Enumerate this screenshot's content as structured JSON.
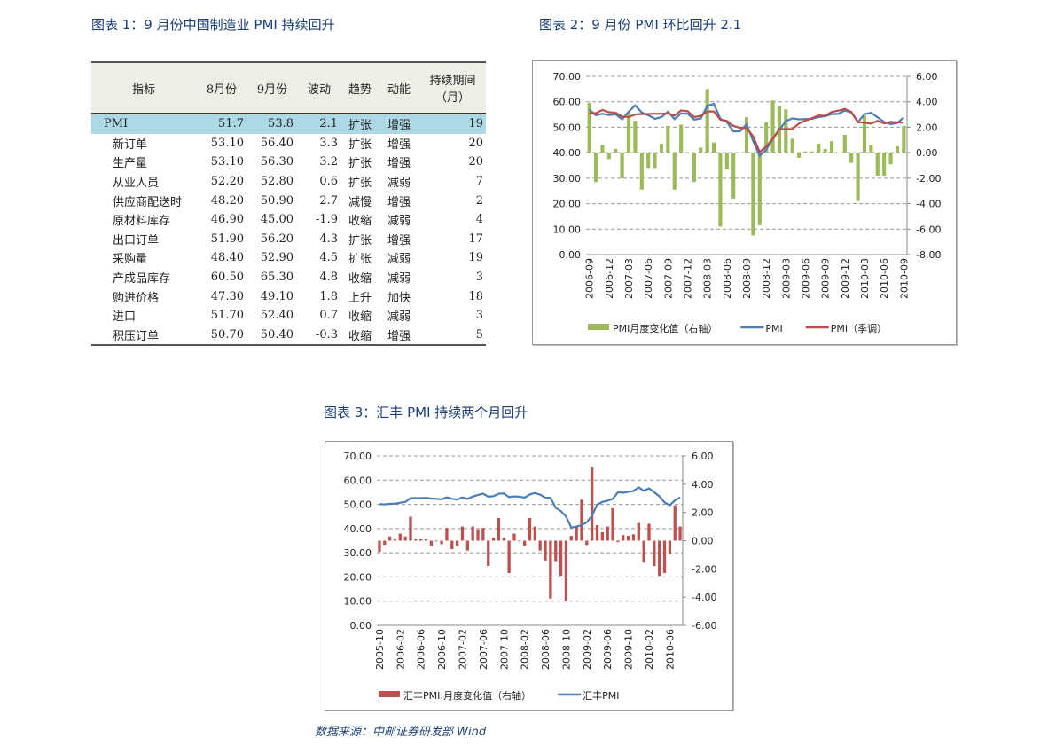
{
  "titles": {
    "t1": "图表 1：9 月份中国制造业 PMI 持续回升",
    "t2": "图表 2：9 月份 PMI 环比回升 2.1",
    "t3": "图表 3：汇丰 PMI 持续两个月回升"
  },
  "table": {
    "headers": [
      "指标",
      "8月份",
      "9月份",
      "波动",
      "趋势",
      "动能",
      "持续期间",
      "（月）"
    ],
    "rows": [
      [
        "PMI",
        "51.7",
        "53.8",
        "2.1",
        "扩张",
        "增强",
        "19"
      ],
      [
        "新订单",
        "53.10",
        "56.40",
        "3.3",
        "扩张",
        "增强",
        "20"
      ],
      [
        "生产量",
        "53.10",
        "56.30",
        "3.2",
        "扩张",
        "增强",
        "20"
      ],
      [
        "从业人员",
        "52.20",
        "52.80",
        "0.6",
        "扩张",
        "减弱",
        "7"
      ],
      [
        "供应商配送时",
        "48.20",
        "50.90",
        "2.7",
        "减慢",
        "增强",
        "2"
      ],
      [
        "原材料库存",
        "46.90",
        "45.00",
        "-1.9",
        "收缩",
        "减弱",
        "4"
      ],
      [
        "出口订单",
        "51.90",
        "56.20",
        "4.3",
        "扩张",
        "增强",
        "17"
      ],
      [
        "采购量",
        "48.40",
        "52.90",
        "4.5",
        "扩张",
        "减弱",
        "19"
      ],
      [
        "产成品库存",
        "60.50",
        "65.30",
        "4.8",
        "收缩",
        "减弱",
        "3"
      ],
      [
        "购进价格",
        "47.30",
        "49.10",
        "1.8",
        "上升",
        "加快",
        "18"
      ],
      [
        "进口",
        "51.70",
        "52.40",
        "0.7",
        "收缩",
        "减弱",
        "3"
      ],
      [
        "积压订单",
        "50.70",
        "50.40",
        "-0.3",
        "收缩",
        "增强",
        "5"
      ]
    ],
    "colors": {
      "header_bg": "#eeede6",
      "highlight_bg": "#add8e6"
    }
  },
  "chart_data": [
    {
      "type": "bar+line",
      "ylim_left": [
        0,
        70
      ],
      "ylim_right": [
        -8,
        6
      ],
      "left_ticks": [
        "0.00",
        "10.00",
        "20.00",
        "30.00",
        "40.00",
        "50.00",
        "60.00",
        "70.00"
      ],
      "right_ticks": [
        "-8.00",
        "-6.00",
        "-4.00",
        "-2.00",
        "0.00",
        "2.00",
        "4.00",
        "6.00"
      ],
      "x_start": "2006-09",
      "x_tick_labels": [
        "2006-09",
        "2006-12",
        "2007-03",
        "2007-06",
        "2007-09",
        "2007-12",
        "2008-03",
        "2008-06",
        "2008-09",
        "2008-12",
        "2009-03",
        "2009-06",
        "2009-09",
        "2009-12",
        "2010-03",
        "2010-06",
        "2010-09"
      ],
      "grid": true,
      "legend": "bottom",
      "series": [
        {
          "name": "PMI月度变化值（右轴）",
          "type": "bar",
          "axis": "right",
          "color": "#9bbb59",
          "values": [
            3.9,
            -2.3,
            0.6,
            -0.5,
            0.3,
            -2.0,
            3.2,
            2.5,
            -2.9,
            -1.2,
            -1.2,
            0.7,
            2.1,
            -2.9,
            2.2,
            0,
            -2.3,
            0.4,
            5.0,
            0.8,
            -5.8,
            -1.3,
            -3.6,
            0,
            2.8,
            -6.5,
            -5.7,
            2.4,
            4.1,
            3.7,
            3.4,
            1.1,
            -0.4,
            0.1,
            0.1,
            0.7,
            0.3,
            0.9,
            0,
            1.4,
            -0.8,
            -3.8,
            2.9,
            0.6,
            -1.8,
            -1.8,
            -0.9,
            0.5,
            2.1
          ]
        },
        {
          "name": "PMI",
          "type": "line",
          "axis": "left",
          "color": "#4a7ebb",
          "values": [
            56.9,
            54.7,
            55.3,
            54.8,
            55.1,
            53.1,
            56.1,
            58.6,
            55.8,
            54.7,
            53.3,
            54.0,
            56.1,
            53.2,
            55.4,
            55.3,
            53.0,
            53.4,
            58.4,
            59.2,
            53.3,
            52.0,
            48.4,
            48.4,
            51.2,
            44.6,
            38.8,
            41.2,
            45.3,
            49.0,
            52.4,
            53.5,
            53.1,
            53.2,
            53.3,
            54.0,
            54.3,
            55.2,
            55.2,
            56.6,
            55.8,
            52.0,
            55.1,
            55.7,
            53.9,
            52.1,
            51.2,
            51.7,
            53.8
          ]
        },
        {
          "name": "PMI（季调）",
          "type": "line",
          "axis": "left",
          "color": "#be4b48",
          "values": [
            55.6,
            55.5,
            56.8,
            55.9,
            55.7,
            54.2,
            54.0,
            55.0,
            55.2,
            55.2,
            55.3,
            55.3,
            55.4,
            54.6,
            56.6,
            56.3,
            54.0,
            54.4,
            56.2,
            56.2,
            53.0,
            52.5,
            50.5,
            49.8,
            49.7,
            46.4,
            40.3,
            42.4,
            45.5,
            49.3,
            49.3,
            49.3,
            51.5,
            52.6,
            53.6,
            54.6,
            54.5,
            56.0,
            56.5,
            57.2,
            56.0,
            52.0,
            51.8,
            51.4,
            52.5,
            51.5,
            52.1,
            51.9,
            51.8
          ]
        }
      ]
    },
    {
      "type": "bar+line",
      "ylim_left": [
        0,
        70
      ],
      "ylim_right": [
        -6,
        6
      ],
      "left_ticks": [
        "0.00",
        "10.00",
        "20.00",
        "30.00",
        "40.00",
        "50.00",
        "60.00",
        "70.00"
      ],
      "right_ticks": [
        "-6.00",
        "-4.00",
        "-2.00",
        "0.00",
        "2.00",
        "4.00",
        "6.00"
      ],
      "x_start": "2005-10",
      "x_tick_labels": [
        "2005-10",
        "2006-02",
        "2006-06",
        "2006-10",
        "2007-02",
        "2007-06",
        "2007-10",
        "2008-02",
        "2008-06",
        "2008-10",
        "2009-02",
        "2009-06",
        "2009-10",
        "2010-02",
        "2010-06"
      ],
      "grid": true,
      "legend": "bottom",
      "series": [
        {
          "name": "汇丰PMI:月度变化值（右轴）",
          "type": "bar",
          "axis": "right",
          "color": "#c0504d",
          "values": [
            -0.8,
            -0.3,
            0.3,
            0.1,
            0.5,
            0.3,
            1.7,
            0.1,
            0.1,
            0.1,
            -0.35,
            -0.05,
            -0.25,
            0.9,
            -0.6,
            -0.35,
            1.0,
            -0.7,
            1.0,
            0.8,
            0.9,
            -1.8,
            0.2,
            1.6,
            0.2,
            -2.3,
            0.5,
            -0.05,
            -0.35,
            1.6,
            1.0,
            -0.7,
            -1.4,
            -4.1,
            -1.45,
            -2.5,
            -4.3,
            0.35,
            1.0,
            2.9,
            -0.3,
            5.2,
            1.1,
            0.6,
            1.0,
            2.3,
            -0.1,
            0.4,
            0.35,
            0.45,
            1.25,
            -1.55,
            1.2,
            -1.8,
            -2.5,
            -2.3,
            -0.95,
            2.5,
            1.0
          ]
        },
        {
          "name": "汇丰PMI",
          "type": "line",
          "axis": "left",
          "color": "#4a7ebb",
          "values": [
            50.1,
            50.0,
            50.2,
            50.3,
            50.7,
            51.0,
            52.6,
            52.6,
            52.6,
            52.7,
            52.4,
            52.3,
            52.1,
            52.9,
            52.3,
            52.0,
            52.9,
            52.3,
            53.2,
            53.9,
            54.4,
            53.2,
            53.4,
            54.4,
            54.5,
            53.0,
            53.3,
            53.2,
            52.8,
            54.1,
            54.7,
            54.0,
            52.8,
            52.7,
            48.6,
            47.2,
            45.0,
            40.4,
            40.8,
            41.4,
            42.6,
            45.3,
            49.9,
            51.0,
            51.5,
            52.3,
            55.0,
            54.8,
            55.2,
            55.5,
            57.0,
            55.6,
            56.6,
            55.0,
            53.3,
            50.8,
            49.6,
            51.7,
            52.9
          ]
        }
      ]
    }
  ],
  "source": "数据来源：中邮证券研发部 Wind"
}
